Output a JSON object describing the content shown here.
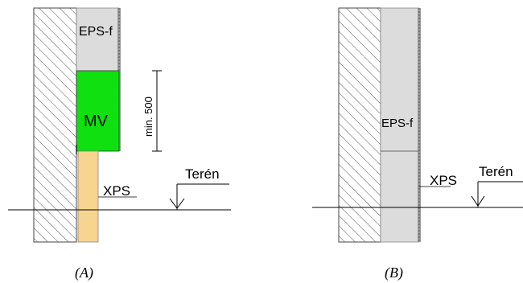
{
  "diagram_a": {
    "caption": "(A)",
    "labels": {
      "eps": "EPS-f",
      "mv": "MV",
      "dimension": "min. 500",
      "xps": "XPS",
      "terrain": "Terén"
    },
    "colors": {
      "eps": "#dcdcdc",
      "mv": "#10e010",
      "xps": "#f7d48f",
      "hatch": "#444444"
    }
  },
  "diagram_b": {
    "caption": "(B)",
    "labels": {
      "eps": "EPS-f",
      "xps": "XPS",
      "terrain": "Terén"
    },
    "colors": {
      "eps": "#dcdcdc",
      "hatch": "#444444"
    }
  }
}
